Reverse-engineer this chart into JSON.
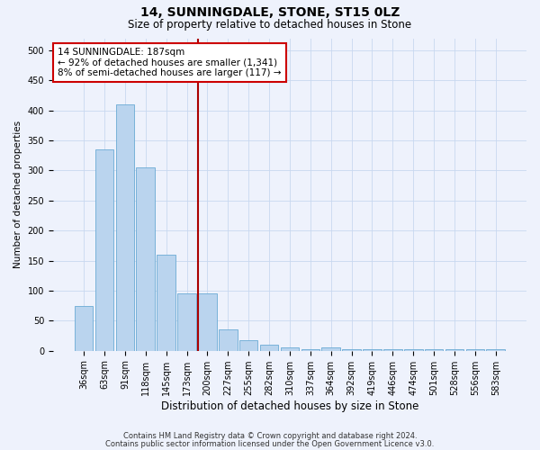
{
  "title1": "14, SUNNINGDALE, STONE, ST15 0LZ",
  "title2": "Size of property relative to detached houses in Stone",
  "xlabel": "Distribution of detached houses by size in Stone",
  "ylabel": "Number of detached properties",
  "property_label": "14 SUNNINGDALE: 187sqm",
  "annotation_line1": "← 92% of detached houses are smaller (1,341)",
  "annotation_line2": "8% of semi-detached houses are larger (117) →",
  "footer1": "Contains HM Land Registry data © Crown copyright and database right 2024.",
  "footer2": "Contains public sector information licensed under the Open Government Licence v3.0.",
  "bar_color": "#bad4ee",
  "bar_edge_color": "#6aaad4",
  "vline_color": "#aa0000",
  "annotation_box_color": "#cc0000",
  "background_color": "#eef2fc",
  "categories": [
    "36sqm",
    "63sqm",
    "91sqm",
    "118sqm",
    "145sqm",
    "173sqm",
    "200sqm",
    "227sqm",
    "255sqm",
    "282sqm",
    "310sqm",
    "337sqm",
    "364sqm",
    "392sqm",
    "419sqm",
    "446sqm",
    "474sqm",
    "501sqm",
    "528sqm",
    "556sqm",
    "583sqm"
  ],
  "values": [
    75,
    335,
    410,
    305,
    160,
    95,
    95,
    35,
    18,
    10,
    5,
    2,
    5,
    2,
    2,
    2,
    2,
    2,
    2,
    2,
    2
  ],
  "ylim": [
    0,
    520
  ],
  "yticks": [
    0,
    50,
    100,
    150,
    200,
    250,
    300,
    350,
    400,
    450,
    500
  ],
  "vline_x_idx": 6.0,
  "grid_color": "#c8d8f0",
  "title_fontsize": 10,
  "subtitle_fontsize": 8.5,
  "xlabel_fontsize": 8.5,
  "ylabel_fontsize": 7.5,
  "tick_fontsize": 7,
  "annot_fontsize": 7.5,
  "footer_fontsize": 6
}
